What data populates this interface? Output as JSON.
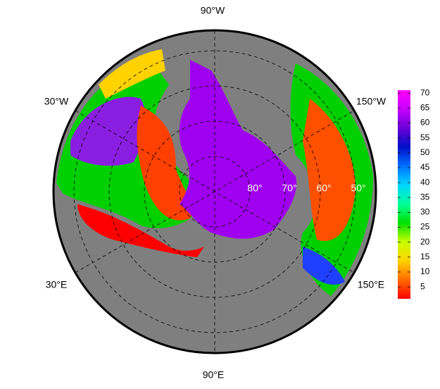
{
  "map": {
    "longitude_labels": {
      "top": "90°W",
      "upper_left": "30°W",
      "upper_right": "150°W",
      "lower_left": "30°E",
      "lower_right": "150°E",
      "bottom": "90°E"
    },
    "latitude_labels": [
      "80°",
      "70°",
      "60°",
      "50°"
    ],
    "colorbar": {
      "lim": [
        1,
        71
      ],
      "ticks": [
        5,
        10,
        15,
        20,
        25,
        30,
        35,
        40,
        45,
        50,
        55,
        60,
        65,
        70
      ],
      "colors": [
        "#ff0000",
        "#ff6a00",
        "#ffd200",
        "#c8ff00",
        "#00e000",
        "#00ff9a",
        "#00d8ff",
        "#0070ff",
        "#0010c8",
        "#6a00d8",
        "#c800ff",
        "#ff00ff"
      ]
    }
  }
}
